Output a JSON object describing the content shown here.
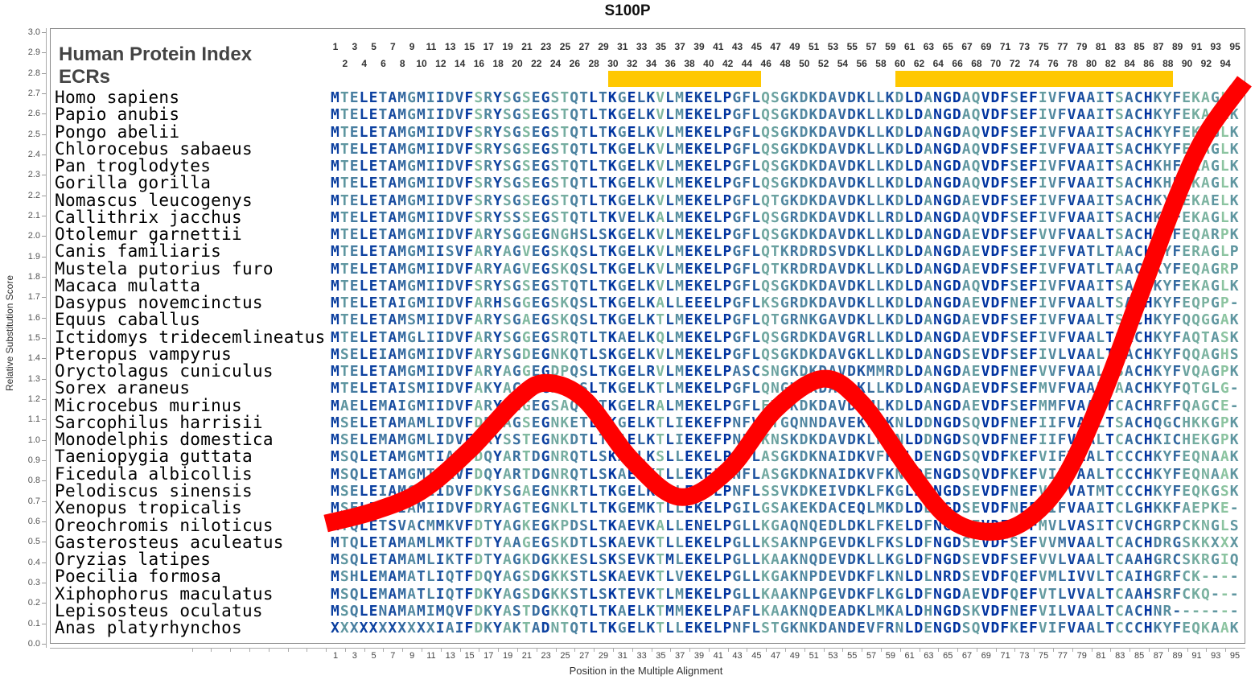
{
  "chart_data": {
    "type": "line",
    "title": "S100P",
    "xlabel": "Position in the Multiple Alignment",
    "ylabel": "Relative Substitution Score",
    "ylim": [
      0.0,
      3.0
    ],
    "yticks": [
      "0.0",
      "0.1",
      "0.2",
      "0.3",
      "0.4",
      "0.5",
      "0.6",
      "0.7",
      "0.8",
      "0.9",
      "1.0",
      "1.1",
      "1.2",
      "1.3",
      "1.4",
      "1.5",
      "1.6",
      "1.7",
      "1.8",
      "1.9",
      "2.0",
      "2.1",
      "2.2",
      "2.3",
      "2.4",
      "2.5",
      "2.6",
      "2.7",
      "2.8",
      "2.9",
      "3.0"
    ],
    "xlim": [
      1,
      95
    ],
    "curve_color": "#ff0000",
    "series": [
      {
        "name": "Relative Substitution Score",
        "x": [
          0,
          5,
          10,
          15,
          20,
          23,
          27,
          32,
          37,
          42,
          47,
          52,
          56,
          61,
          65,
          69,
          73,
          77,
          81,
          85,
          89,
          92,
          96
        ],
        "y": [
          0.59,
          0.65,
          0.75,
          0.95,
          1.2,
          1.28,
          1.2,
          0.9,
          0.72,
          0.85,
          1.15,
          1.3,
          1.18,
          0.85,
          0.62,
          0.55,
          0.6,
          0.8,
          1.2,
          1.7,
          2.2,
          2.5,
          2.76
        ]
      }
    ],
    "ecr_color": "#ffc800",
    "ecrs": [
      {
        "start": 30,
        "end": 45
      },
      {
        "start": 60,
        "end": 88
      }
    ]
  },
  "header": {
    "index_label": "Human Protein Index",
    "ecr_label": "ECRs"
  },
  "colors": {
    "conserved": "#0033a0",
    "variable": "#8cc4a0"
  },
  "alignment": [
    {
      "species": "Homo sapiens",
      "seq": "MTELETAMGMIIDVFSRYSGSEGSTQTLTKGELKVLMEKELPGFLQSGKDKDAVDKLLKDLDANGDAQVDFSEFIVFVAAITSACHKYFEKAGLK"
    },
    {
      "species": "Papio anubis",
      "seq": "MTELETAMGMIIDVFSRYSGSEGSTQTLTKGELKVLMEKELPGFLQSGKDKDAVDKLLKDLDANGDAQVDFSEFIVFVAAITSACHKYFEKAGLK"
    },
    {
      "species": "Pongo abelii",
      "seq": "MTELETAMGMIIDVFSRYSGSEGSTQTLTKGELKVLMEKELPGFLQSGKDKDAVDKLLKDLDANGDAQVDFSEFIVFVAAITSACHKYFEKAGLK"
    },
    {
      "species": "Chlorocebus sabaeus",
      "seq": "MTELETAMGMIIDVFSRYSGSEGSTQTLTKGELKVLMEKELPGFLQSGKDKDAVDKLLKDLDANGDAQVDFSEFIVFVAAITSACHKYFEKAGLK"
    },
    {
      "species": "Pan troglodytes",
      "seq": "MTELETAMGMIIDVFSRYSGSEGSTQTLTKGELKVLMEKELPGFLQSGKDKDAVDKLLKDLDANGDAQVDFSEFIVFVAAITSACHKHFEKAGLK"
    },
    {
      "species": "Gorilla gorilla",
      "seq": "MTELETAMGMIIDVFSRYSGSEGSTQTLTKGELKVLMEKELPGFLQSGKDKDAVDKLLKDLDANGDAQVDFSEFIVFVAAITSACHKHFEKAGLK"
    },
    {
      "species": "Nomascus leucogenys",
      "seq": "MTELETAMGMIIDVFSRYSGSEGSTQTLTKGELKVLMEKELPGFLQTGKDKDAVDKLLKDLDANGDAEVDFSEFIVFVAAITSACHKYFEKAELK"
    },
    {
      "species": "Callithrix jacchus",
      "seq": "MTELETAMGMIIDVFSRYSSSEGSTQTLTKVELKALMEKELPGFLQSGRDKDAVDKLLRDLDANGDAQVDFSEFIVFVAAITSACHKYFEKAGLK"
    },
    {
      "species": "Otolemur garnettii",
      "seq": "MTELETAMGMIIDVFARYSGGEGNGHSLSKGELKVLMEKELPGFLQSGKDKDAVDKLLKDLDANGDAEVDFSEFVVFVAALTSACHKYFEQARPK"
    },
    {
      "species": "Canis familiaris",
      "seq": "MTELETAMGMIISVFARYAGVEGSKQSLTKGELKVLMEKELPGFLQTKRDRDSVDKLLKDLDANGDAEVDFSEFIVFVATLTAACHQYFERAGLP"
    },
    {
      "species": "Mustela putorius furo",
      "seq": "MTELETAMGMIIDVFARYAGVEGSKQSLTKGELKVLMEKELPGFLQTKRDRDAVDKLLKDLDANGDAEVDFSEFIVFVATLTAACHKYFEQAGRP"
    },
    {
      "species": "Macaca mulatta",
      "seq": "MTELETAMGMIIDVFSRYSGSEGSTQTLTKGELKVLMEKELPGFLQSGKDKDAVDKLLKDLDANGDAQVDFSEFIVFVAAITSACHKYFEKAGLK"
    },
    {
      "species": "Dasypus novemcinctus",
      "seq": "MTELETAIGMIIDVFARHSGGEGSKQSLTKGELKALLEEELPGFLKSGRDKDAVDKLLKDLDANGDAEVDFNEFIVFVAALTSACHKYFEQPGP-"
    },
    {
      "species": "Equus caballus",
      "seq": "MTELETAMSMIIDVFARYSGAEGSKQSLTKGELKTLMEKELPGFLQTGRNKGAVDKLLKDLDANGDAEVDFSEFIVFVAALTSTCHKYFQQGGAK"
    },
    {
      "species": "Ictidomys tridecemlineatus",
      "seq": "MTELETAMGLIIDVFARYSGGEGSRQTLTKAELKQLMEKELPGFLQSGRDKDAVGRLLKDLDANGDAEVDFSEFIVFVAALTSACHKYFAQTASK"
    },
    {
      "species": "Pteropus vampyrus",
      "seq": "MSELEIAMGMIIDVFARYSGDEGNKQTLSKGELKVLMEKELPGFLQSGKDKDAVGKLLKDLDANGDSEVDFSEFIVLVAALTTACHKYFQQAGHS"
    },
    {
      "species": "Oryctolagus cuniculus",
      "seq": "MTELETAMGMIIDVFARYAGGEGDPQSLTKGELRVLMEKELPASCSNGKDKDAVDKMMRDLDANGDAEVDFNEFVVFVAALTSACHKYFVQAGPK"
    },
    {
      "species": "Sorex araneus",
      "seq": "MTELETAISMIIDVFAKYAGSEGNKQSLTKGELKTLMEKELPGFLQNGKEKDAVDKLLKDLDANGDAEVDFSEFMVFVAALTAACHKYFQTGLG-"
    },
    {
      "species": "Microcebus murinus",
      "seq": "MAELEMAIGMIIDVFARYAGGEGSAQTLTKGELRALMEKELPGFLETGKDKDAVDKMLKDLDANGDAEVDFSEFMMFVAALTCACHRFFQAGCE-"
    },
    {
      "species": "Sarcophilus harrisii",
      "seq": "MSELETAMAMLIDVFDRYAGSEGNKETLTKGELKTLIEKEFPNFVKTGQNNDAVEKLFKNLDDNGDSQVDFNEFIIFVAALTSACHQGCHKKGPK"
    },
    {
      "species": "Monodelphis domestica",
      "seq": "MSELEMAMGMLIDVFDRYSSTEGNKDTLTKAELKTLIEKEFPNFVKNSKDKDAVDKLFKNLDDNGDSQVDFNEFIIFVAALTCACHKICHEKGPK"
    },
    {
      "species": "Taeniopygia guttata",
      "seq": "MSQLETAMGMTIAVFDQYARTDGNRQTLSKAELKSLLEKELPNFLASGKDKNAIDKVFKNLDENGDSQVDFKEFVIFVAALTCCCHKYFEQNAAK"
    },
    {
      "species": "Ficedula albicollis",
      "seq": "MSQLETAMGMTIAVFDQYARTDGNRQTLSKAELKTLLEKELPNFLASGKDKNAIDKVFKNLDENGDSQVDFKEFVIFVAALTCCCHKYFEQNAAK"
    },
    {
      "species": "Pelodiscus sinensis",
      "seq": "MSELEIAMGMIIDVFDKYSGAEGNKRTLTKGELKTLLEKELPNFLSSVKDKEIVDKLFKGLDENGDSEVDFNEFVIFVATMTCCCHKYFEQKGSK"
    },
    {
      "species": "Xenopus tropicalis",
      "seq": "MSELETAIAMIIDVFDRYAGTEGNKLTLTKGEMKTLLEKELPGILGSAKEKDACEQLMKDLDENGDSEVDFNEFIIFVAAITCLGHKKFAEPKE-"
    },
    {
      "species": "Oreochromis niloticus",
      "seq": "MTQLETSVACMMKVFDTYAGKEGKPDSLTKAEVKALLENELPGLLKGAQNQEDLDKLFKELDFNGDGEVDFNEFMVLVASITCVCHGRPCKNGLS"
    },
    {
      "species": "Gasterosteus aculeatus",
      "seq": "MTQLETAMAMLMKTFDTYAAGEGSKDTLSKAEVKTLLEKELPGLLKSAKNPGEVDKLFKSLDFNGDSEVDFSEFVVMVAALTCACHDRGSKKXXX"
    },
    {
      "species": "Oryzias latipes",
      "seq": "MSQLETAMAMLIKTFDTYAGKDGKKESLSKSEVKTMLEKELPGLLKAAKNQDEVDKLLKGLDFNGDSEVDFSEFVVLVAALTCAAHGRCSKRGIQ"
    },
    {
      "species": "Poecilia formosa",
      "seq": "MSHLEMAMATLIQTFDQYAGSDGKKSTLSKAEVKTLVEKELPGLLKGAKNPDEVDKFLKNLDLNRDSEVDFQEFVMLIVVLTCAIHGRFCK----"
    },
    {
      "species": "Xiphophorus maculatus",
      "seq": "MSQLEMAMATLIQTFDKYAGSDGKKSTLSKTEVKTLMEKELPGLLKAAKNPGEVDKFLKGLDFNGDAEVDFQEFVTLVVALTCAAHSRFCKQ---"
    },
    {
      "species": "Lepisosteus oculatus",
      "seq": "MSQLENAMAMIMQVFDKYASTDGKKQTLTKAELKTMMEKELPAFLKAAKNQDEADKLMKALDHNGDSKVDFNEFVILVAALTCACHNR-------"
    },
    {
      "species": "Anas platyrhynchos",
      "seq": "XXXXXXXXXXXIAIFDKYAKTADNTQTLTKGELKTLLEKELPNFLSTGKNKDANDEVFRNLDENGDSQVDFKEFVIFVAALTCCCHKYFEQKAAK"
    }
  ]
}
